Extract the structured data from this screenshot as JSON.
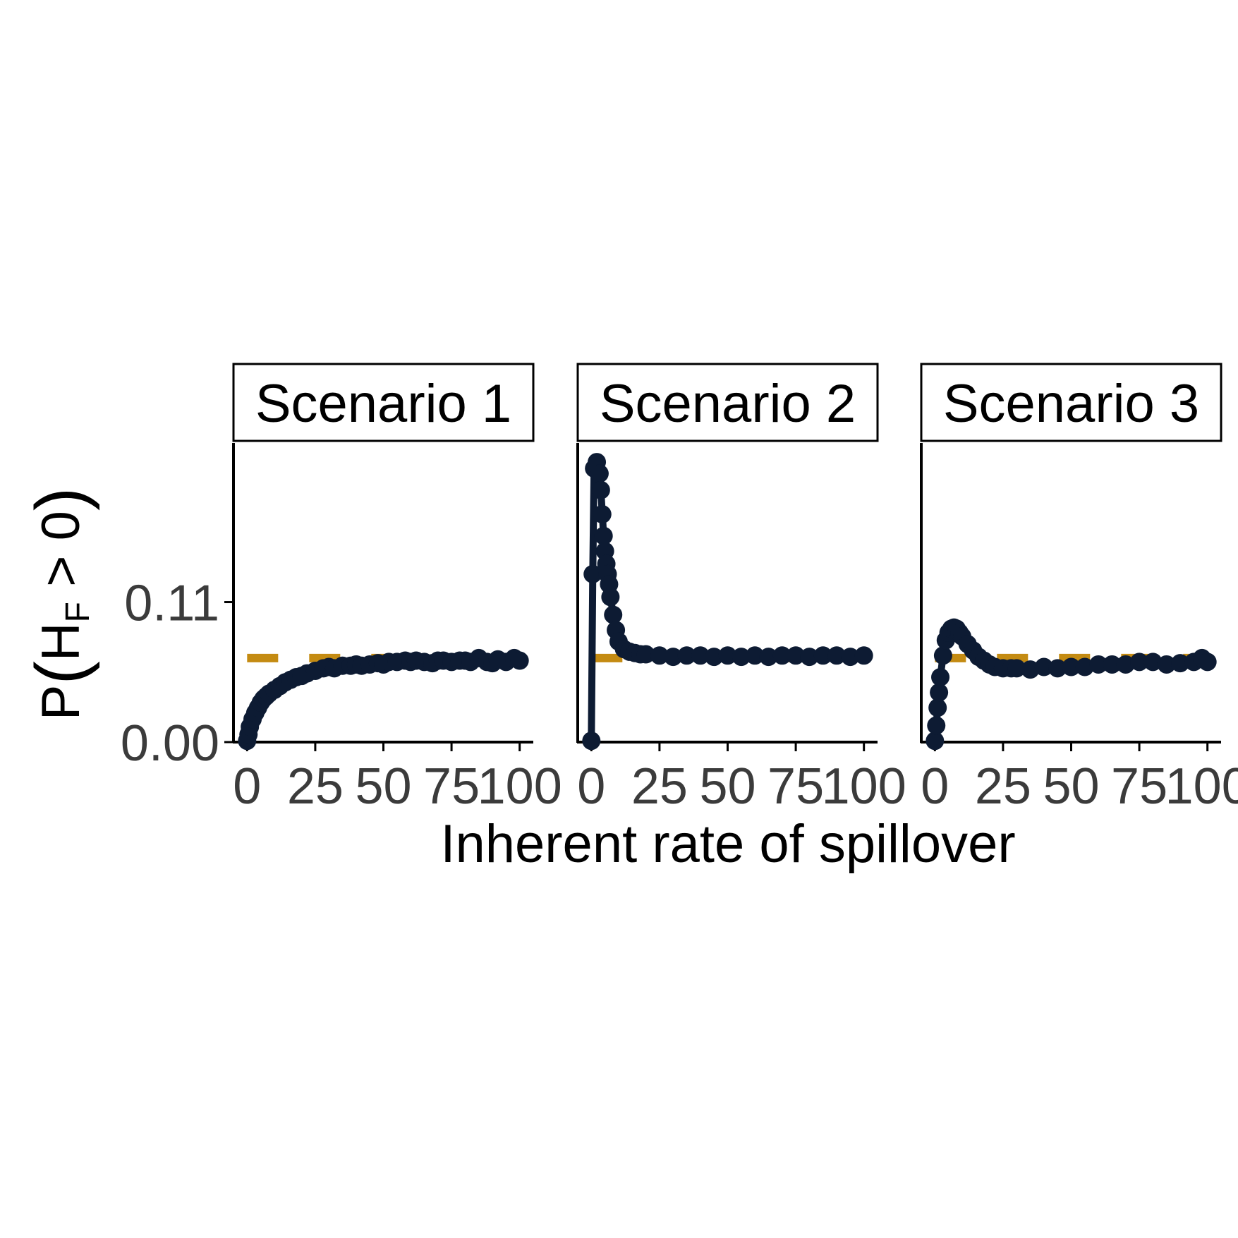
{
  "chart_data": {
    "type": "line",
    "xlabel": "Inherent rate of spillover",
    "ylabel": "P(H_F > 0)",
    "ylabel_parts": {
      "p": "P",
      "h": "H",
      "sub": "F",
      "rest": " > 0"
    },
    "xlim": [
      -5,
      105
    ],
    "ylim": [
      0,
      0.235
    ],
    "x_ticks": [
      0,
      25,
      50,
      75,
      100
    ],
    "x_tick_labels": [
      "0",
      "25",
      "50",
      "75",
      "100"
    ],
    "y_ticks": [
      0.0,
      0.11
    ],
    "y_tick_labels": [
      "0.00",
      "0.11"
    ],
    "colors": {
      "series": "#0d1b33",
      "reference": "#c48b12",
      "frame": "#000000",
      "tick_text": "#3b3b3b"
    },
    "grid": false,
    "legend": "none",
    "panels": [
      {
        "strip": "Scenario 1",
        "reference_value": 0.066,
        "series": {
          "x": [
            0,
            0.5,
            1,
            2,
            3,
            4,
            5,
            6,
            7,
            8,
            10,
            12,
            14,
            16,
            18,
            20,
            22,
            25,
            28,
            30,
            32,
            35,
            38,
            40,
            42,
            45,
            48,
            50,
            52,
            55,
            58,
            60,
            62,
            65,
            68,
            70,
            72,
            75,
            78,
            80,
            82,
            85,
            88,
            90,
            92,
            95,
            98,
            100
          ],
          "y": [
            0.001,
            0.006,
            0.012,
            0.018,
            0.023,
            0.027,
            0.031,
            0.034,
            0.036,
            0.038,
            0.041,
            0.044,
            0.047,
            0.049,
            0.051,
            0.052,
            0.054,
            0.056,
            0.058,
            0.059,
            0.058,
            0.06,
            0.06,
            0.061,
            0.06,
            0.061,
            0.062,
            0.061,
            0.063,
            0.063,
            0.064,
            0.063,
            0.064,
            0.063,
            0.062,
            0.064,
            0.064,
            0.063,
            0.064,
            0.064,
            0.063,
            0.066,
            0.063,
            0.062,
            0.065,
            0.063,
            0.066,
            0.064
          ]
        }
      },
      {
        "strip": "Scenario 2",
        "reference_value": 0.066,
        "series": {
          "x": [
            0,
            0.5,
            1,
            2,
            3,
            3.5,
            4,
            4.5,
            5,
            5.5,
            6,
            6.5,
            7,
            8,
            9,
            10,
            12,
            14,
            16,
            18,
            20,
            25,
            30,
            35,
            40,
            45,
            50,
            55,
            60,
            65,
            70,
            75,
            80,
            85,
            90,
            95,
            100
          ],
          "y": [
            0.001,
            0.132,
            0.215,
            0.22,
            0.211,
            0.198,
            0.179,
            0.162,
            0.15,
            0.14,
            0.132,
            0.124,
            0.114,
            0.1,
            0.088,
            0.079,
            0.073,
            0.071,
            0.07,
            0.069,
            0.069,
            0.068,
            0.067,
            0.068,
            0.068,
            0.067,
            0.068,
            0.067,
            0.068,
            0.067,
            0.068,
            0.068,
            0.067,
            0.068,
            0.068,
            0.067,
            0.068
          ]
        }
      },
      {
        "strip": "Scenario 3",
        "reference_value": 0.066,
        "series": {
          "x": [
            0,
            0.5,
            1,
            1.5,
            2,
            3,
            4,
            5,
            6,
            7,
            8,
            9,
            10,
            12,
            14,
            16,
            18,
            20,
            22,
            25,
            28,
            30,
            35,
            40,
            45,
            50,
            55,
            60,
            65,
            70,
            75,
            80,
            85,
            90,
            95,
            98,
            100
          ],
          "y": [
            0.001,
            0.013,
            0.027,
            0.039,
            0.051,
            0.068,
            0.08,
            0.086,
            0.089,
            0.09,
            0.089,
            0.086,
            0.083,
            0.077,
            0.072,
            0.067,
            0.064,
            0.061,
            0.059,
            0.058,
            0.058,
            0.058,
            0.057,
            0.059,
            0.058,
            0.059,
            0.059,
            0.061,
            0.061,
            0.061,
            0.063,
            0.063,
            0.061,
            0.062,
            0.063,
            0.066,
            0.063
          ]
        }
      }
    ]
  }
}
